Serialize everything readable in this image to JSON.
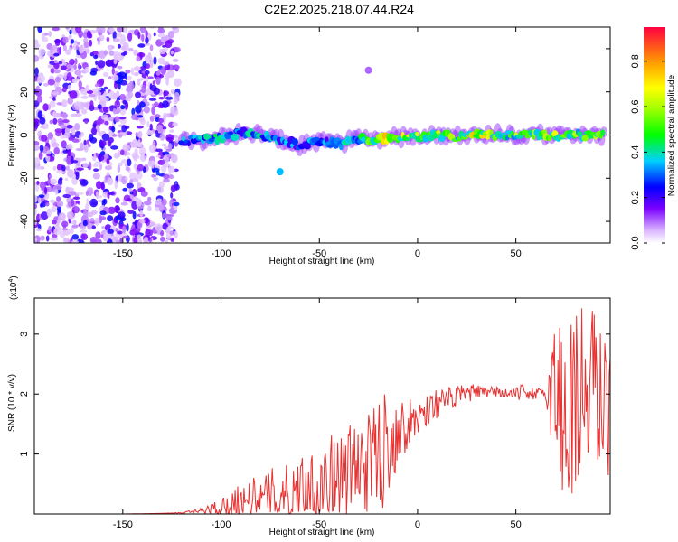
{
  "title": "C2E2.2025.218.07.44.R24",
  "chart_data": [
    {
      "type": "heatmap",
      "xlabel": "Height of straight line (km)",
      "ylabel": "Frequency (Hz)",
      "xlim": [
        -195,
        98
      ],
      "ylim": [
        -50,
        50
      ],
      "xticks": [
        -150,
        -100,
        -50,
        0,
        50
      ],
      "yticks": [
        -40,
        -20,
        0,
        20,
        40
      ],
      "xtick_labels": [
        "-150",
        "-100",
        "-50",
        "0",
        "50"
      ],
      "ytick_labels": [
        "-40",
        "-20",
        "0",
        "20",
        "40"
      ],
      "colorbar": {
        "label": "Normalized spectral amplitude",
        "range": [
          0,
          0.95
        ],
        "ticks": [
          0,
          0.2,
          0.4,
          0.6,
          0.8
        ],
        "tick_labels": [
          "0.0",
          "0.2",
          "0.4",
          "0.6",
          "0.8"
        ],
        "colormap": "rainbow (white-violet-blue-cyan-green-yellow-orange-red)"
      },
      "noise_region_x": [
        -195,
        -122
      ],
      "signal_track": [
        {
          "x": -120,
          "freq": -3,
          "amp": 0.35
        },
        {
          "x": -110,
          "freq": -2,
          "amp": 0.4
        },
        {
          "x": -100,
          "freq": -1,
          "amp": 0.4
        },
        {
          "x": -90,
          "freq": 1,
          "amp": 0.35
        },
        {
          "x": -80,
          "freq": 0,
          "amp": 0.4
        },
        {
          "x": -70,
          "freq": -2,
          "amp": 0.35
        },
        {
          "x": -60,
          "freq": -5,
          "amp": 0.3
        },
        {
          "x": -50,
          "freq": -3,
          "amp": 0.35
        },
        {
          "x": -40,
          "freq": -4,
          "amp": 0.35
        },
        {
          "x": -30,
          "freq": -2,
          "amp": 0.4
        },
        {
          "x": -20,
          "freq": -2,
          "amp": 0.75
        },
        {
          "x": -10,
          "freq": -1,
          "amp": 0.7
        },
        {
          "x": 0,
          "freq": -1,
          "amp": 0.6
        },
        {
          "x": 10,
          "freq": 0,
          "amp": 0.55
        },
        {
          "x": 20,
          "freq": -1,
          "amp": 0.6
        },
        {
          "x": 30,
          "freq": 0,
          "amp": 0.7
        },
        {
          "x": 40,
          "freq": 0,
          "amp": 0.55
        },
        {
          "x": 50,
          "freq": 0,
          "amp": 0.55
        },
        {
          "x": 60,
          "freq": 0,
          "amp": 0.55
        },
        {
          "x": 70,
          "freq": 0,
          "amp": 0.6
        },
        {
          "x": 80,
          "freq": 0,
          "amp": 0.55
        },
        {
          "x": 90,
          "freq": 0,
          "amp": 0.55
        },
        {
          "x": 95,
          "freq": 0,
          "amp": 0.5
        }
      ],
      "annotations": [
        {
          "x": -70,
          "freq": -17,
          "amp": 0.35,
          "note": "isolated blob"
        },
        {
          "x": -25,
          "freq": 30,
          "amp": 0.1,
          "note": "faint feature"
        }
      ]
    },
    {
      "type": "line",
      "xlabel": "Height of straight line (km)",
      "ylabel": "SNR (10 * v/v)",
      "scale_label": "(x10^4)",
      "scale_base": "(x10",
      "scale_exp": "4",
      "xlim": [
        -195,
        98
      ],
      "ylim": [
        0,
        3.6
      ],
      "xticks": [
        -150,
        -100,
        -50,
        0,
        50
      ],
      "yticks": [
        1,
        2,
        3
      ],
      "xtick_labels": [
        "-150",
        "-100",
        "-50",
        "0",
        "50"
      ],
      "ytick_labels": [
        "1",
        "2",
        "3"
      ],
      "series": [
        {
          "color": "#e83232",
          "x": [
            -195,
            -170,
            -150,
            -130,
            -120,
            -110,
            -100,
            -95,
            -90,
            -85,
            -80,
            -75,
            -70,
            -65,
            -60,
            -55,
            -50,
            -45,
            -40,
            -35,
            -30,
            -25,
            -20,
            -15,
            -10,
            -5,
            0,
            5,
            10,
            15,
            20,
            25,
            30,
            35,
            40,
            45,
            50,
            55,
            60,
            65,
            70,
            75,
            80,
            85,
            90,
            95
          ],
          "values": [
            0.0,
            0.0,
            0.0,
            0.01,
            0.02,
            0.05,
            0.12,
            0.18,
            0.25,
            0.28,
            0.22,
            0.3,
            0.35,
            0.32,
            0.4,
            0.45,
            0.5,
            0.55,
            0.6,
            0.7,
            0.8,
            0.85,
            1.0,
            1.2,
            1.4,
            1.5,
            1.6,
            1.75,
            1.85,
            1.9,
            1.95,
            2.0,
            2.05,
            2.0,
            2.05,
            2.0,
            2.0,
            2.05,
            2.0,
            2.0,
            2.1,
            1.6,
            2.0,
            1.9,
            2.2,
            1.8
          ],
          "noise_envelope": [
            0.0,
            0.0,
            0.0,
            0.0,
            0.01,
            0.05,
            0.15,
            0.2,
            0.3,
            0.35,
            0.35,
            0.45,
            0.5,
            0.5,
            0.6,
            0.7,
            0.8,
            0.8,
            0.7,
            0.8,
            0.9,
            0.8,
            1.1,
            0.9,
            0.6,
            0.4,
            0.35,
            0.3,
            0.25,
            0.2,
            0.2,
            0.15,
            0.12,
            0.1,
            0.1,
            0.1,
            0.1,
            0.15,
            0.1,
            0.1,
            1.4,
            1.8,
            2.0,
            1.6,
            1.4,
            1.2
          ]
        }
      ]
    }
  ]
}
